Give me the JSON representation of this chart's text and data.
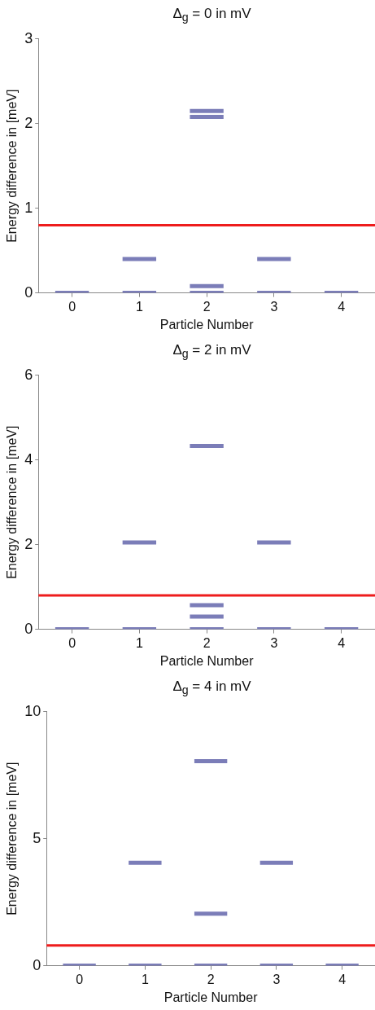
{
  "chart_data": [
    {
      "type": "line",
      "title": "Δ$_{g}$ = 0 in mV",
      "xlabel": "Particle Number",
      "ylabel": "Energy difference in [meV]",
      "xlim": [
        -0.5,
        4.5
      ],
      "xticks": [
        0,
        1,
        2,
        3,
        4
      ],
      "ylim": [
        0,
        3
      ],
      "yticks": [
        0,
        1,
        2,
        3
      ],
      "marker": "none",
      "series": [
        {
          "color": "#7b7db8",
          "x": [
            -0.25,
            0.25
          ],
          "values": [
            0,
            0
          ]
        },
        {
          "color": "#7b7db8",
          "x": [
            0.75,
            1.25
          ],
          "values": [
            0,
            0
          ]
        },
        {
          "color": "#7b7db8",
          "x": [
            0.75,
            1.25
          ],
          "values": [
            0.4,
            0.4
          ]
        },
        {
          "color": "#7b7db8",
          "x": [
            1.75,
            2.25
          ],
          "values": [
            0,
            0
          ]
        },
        {
          "color": "#7b7db8",
          "x": [
            1.75,
            2.25
          ],
          "values": [
            0.08,
            0.08
          ]
        },
        {
          "color": "#7b7db8",
          "x": [
            1.75,
            2.25
          ],
          "values": [
            2.08,
            2.08
          ]
        },
        {
          "color": "#7b7db8",
          "x": [
            1.75,
            2.25
          ],
          "values": [
            2.15,
            2.15
          ]
        },
        {
          "color": "#7b7db8",
          "x": [
            2.75,
            3.25
          ],
          "values": [
            0,
            0
          ]
        },
        {
          "color": "#7b7db8",
          "x": [
            2.75,
            3.25
          ],
          "values": [
            0.4,
            0.4
          ]
        },
        {
          "color": "#7b7db8",
          "x": [
            3.75,
            4.25
          ],
          "values": [
            0,
            0
          ]
        }
      ],
      "ref_lines": [
        {
          "axis": "y",
          "value": 0.8,
          "color": "#ee1c1c"
        }
      ]
    },
    {
      "type": "line",
      "title": "Δ$_{g}$ = 2 in mV",
      "xlabel": "Particle Number",
      "ylabel": "Energy difference in [meV]",
      "xlim": [
        -0.5,
        4.5
      ],
      "xticks": [
        0,
        1,
        2,
        3,
        4
      ],
      "ylim": [
        0,
        6
      ],
      "yticks": [
        0,
        2,
        4,
        6
      ],
      "marker": "none",
      "series": [
        {
          "color": "#7b7db8",
          "x": [
            -0.25,
            0.25
          ],
          "values": [
            0,
            0
          ]
        },
        {
          "color": "#7b7db8",
          "x": [
            0.75,
            1.25
          ],
          "values": [
            0,
            0
          ]
        },
        {
          "color": "#7b7db8",
          "x": [
            0.75,
            1.25
          ],
          "values": [
            2.05,
            2.05
          ]
        },
        {
          "color": "#7b7db8",
          "x": [
            1.75,
            2.25
          ],
          "values": [
            0,
            0
          ]
        },
        {
          "color": "#7b7db8",
          "x": [
            1.75,
            2.25
          ],
          "values": [
            0.3,
            0.3
          ]
        },
        {
          "color": "#7b7db8",
          "x": [
            1.75,
            2.25
          ],
          "values": [
            0.57,
            0.57
          ]
        },
        {
          "color": "#7b7db8",
          "x": [
            1.75,
            2.25
          ],
          "values": [
            4.33,
            4.33
          ]
        },
        {
          "color": "#7b7db8",
          "x": [
            2.75,
            3.25
          ],
          "values": [
            0,
            0
          ]
        },
        {
          "color": "#7b7db8",
          "x": [
            2.75,
            3.25
          ],
          "values": [
            2.05,
            2.05
          ]
        },
        {
          "color": "#7b7db8",
          "x": [
            3.75,
            4.25
          ],
          "values": [
            0,
            0
          ]
        }
      ],
      "ref_lines": [
        {
          "axis": "y",
          "value": 0.8,
          "color": "#ee1c1c"
        }
      ]
    },
    {
      "type": "line",
      "title": "Δ$_{g}$ = 4 in mV",
      "xlabel": "Particle Number",
      "ylabel": "Energy difference in [meV]",
      "xlim": [
        -0.5,
        4.5
      ],
      "xticks": [
        0,
        1,
        2,
        3,
        4
      ],
      "ylim": [
        0,
        10
      ],
      "yticks": [
        0,
        5,
        10
      ],
      "marker": "none",
      "series": [
        {
          "color": "#7b7db8",
          "x": [
            -0.25,
            0.25
          ],
          "values": [
            0,
            0
          ]
        },
        {
          "color": "#7b7db8",
          "x": [
            0.75,
            1.25
          ],
          "values": [
            0,
            0
          ]
        },
        {
          "color": "#7b7db8",
          "x": [
            0.75,
            1.25
          ],
          "values": [
            4.05,
            4.05
          ]
        },
        {
          "color": "#7b7db8",
          "x": [
            1.75,
            2.25
          ],
          "values": [
            0,
            0
          ]
        },
        {
          "color": "#7b7db8",
          "x": [
            1.75,
            2.25
          ],
          "values": [
            2.05,
            2.05
          ]
        },
        {
          "color": "#7b7db8",
          "x": [
            1.75,
            2.25
          ],
          "values": [
            8.05,
            8.05
          ]
        },
        {
          "color": "#7b7db8",
          "x": [
            2.75,
            3.25
          ],
          "values": [
            0,
            0
          ]
        },
        {
          "color": "#7b7db8",
          "x": [
            2.75,
            3.25
          ],
          "values": [
            4.05,
            4.05
          ]
        },
        {
          "color": "#7b7db8",
          "x": [
            3.75,
            4.25
          ],
          "values": [
            0,
            0
          ]
        }
      ],
      "ref_lines": [
        {
          "axis": "y",
          "value": 0.8,
          "color": "#ee1c1c"
        }
      ]
    }
  ]
}
